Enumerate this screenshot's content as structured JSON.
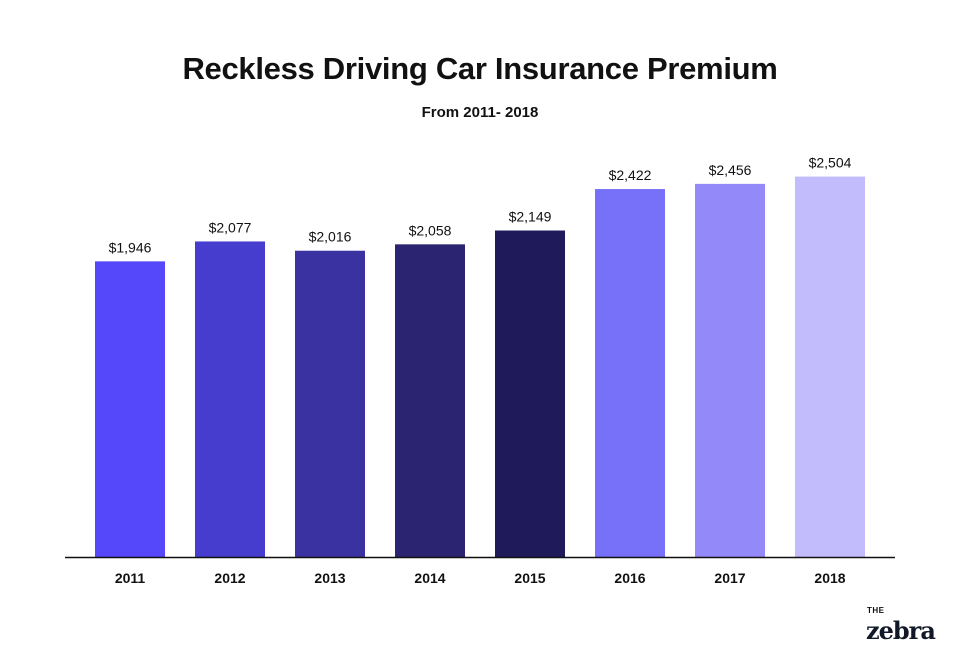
{
  "chart_data": {
    "type": "bar",
    "title": "Reckless Driving Car Insurance Premium",
    "subtitle": "From 2011- 2018",
    "categories": [
      "2011",
      "2012",
      "2013",
      "2014",
      "2015",
      "2016",
      "2017",
      "2018"
    ],
    "values": [
      1946,
      2077,
      2016,
      2058,
      2149,
      2422,
      2456,
      2504
    ],
    "data_labels": [
      "$1,946",
      "$2,077",
      "$2,016",
      "$2,058",
      "$2,149",
      "$2,422",
      "$2,456",
      "$2,504"
    ],
    "colors": [
      "#5548fb",
      "#463dce",
      "#3a32a0",
      "#2b2470",
      "#1f1b5b",
      "#7770f8",
      "#9389f9",
      "#c2bcfc"
    ],
    "xlabel": "",
    "ylabel": "",
    "ylim": [
      0,
      2600
    ],
    "grid": false
  },
  "logo": {
    "the": "THE",
    "name": "zebra"
  }
}
